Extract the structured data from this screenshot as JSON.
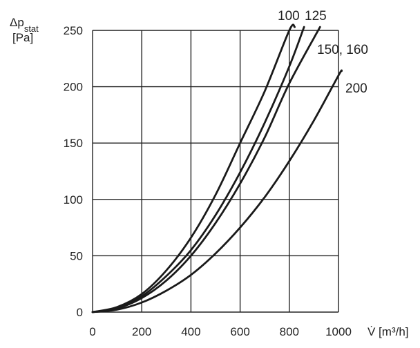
{
  "chart_data": {
    "type": "line",
    "title": "",
    "xlabel": "V̇ [m³/h]",
    "ylabel": [
      "Δp",
      "stat",
      "[Pa]"
    ],
    "xlim": [
      0,
      1000
    ],
    "ylim": [
      0,
      250
    ],
    "xticks": [
      0,
      200,
      400,
      600,
      800,
      1000
    ],
    "yticks": [
      0,
      50,
      100,
      150,
      200,
      250
    ],
    "grid": true,
    "legend": "labels at curve ends",
    "line_color": "#1a1a1a",
    "series": [
      {
        "name": "100",
        "points": [
          [
            0,
            0
          ],
          [
            100,
            4.5
          ],
          [
            200,
            16
          ],
          [
            300,
            37
          ],
          [
            400,
            66
          ],
          [
            500,
            104
          ],
          [
            600,
            150
          ],
          [
            700,
            196
          ],
          [
            800,
            250
          ],
          [
            822,
            253
          ]
        ]
      },
      {
        "name": "125",
        "points": [
          [
            0,
            0
          ],
          [
            100,
            3.8
          ],
          [
            200,
            14
          ],
          [
            300,
            32
          ],
          [
            400,
            55
          ],
          [
            500,
            86
          ],
          [
            600,
            124
          ],
          [
            700,
            168
          ],
          [
            800,
            218
          ],
          [
            860,
            253
          ]
        ]
      },
      {
        "name": "150, 160",
        "points": [
          [
            0,
            0
          ],
          [
            100,
            3.3
          ],
          [
            200,
            12.5
          ],
          [
            300,
            28
          ],
          [
            400,
            50
          ],
          [
            500,
            79
          ],
          [
            600,
            114
          ],
          [
            700,
            155
          ],
          [
            800,
            203
          ],
          [
            925,
            253
          ]
        ]
      },
      {
        "name": "200",
        "points": [
          [
            0,
            0
          ],
          [
            100,
            2.2
          ],
          [
            200,
            8.5
          ],
          [
            300,
            19
          ],
          [
            400,
            33
          ],
          [
            500,
            52
          ],
          [
            600,
            75
          ],
          [
            700,
            102
          ],
          [
            800,
            134
          ],
          [
            900,
            170
          ],
          [
            1000,
            210
          ],
          [
            1013,
            214
          ]
        ]
      }
    ]
  }
}
